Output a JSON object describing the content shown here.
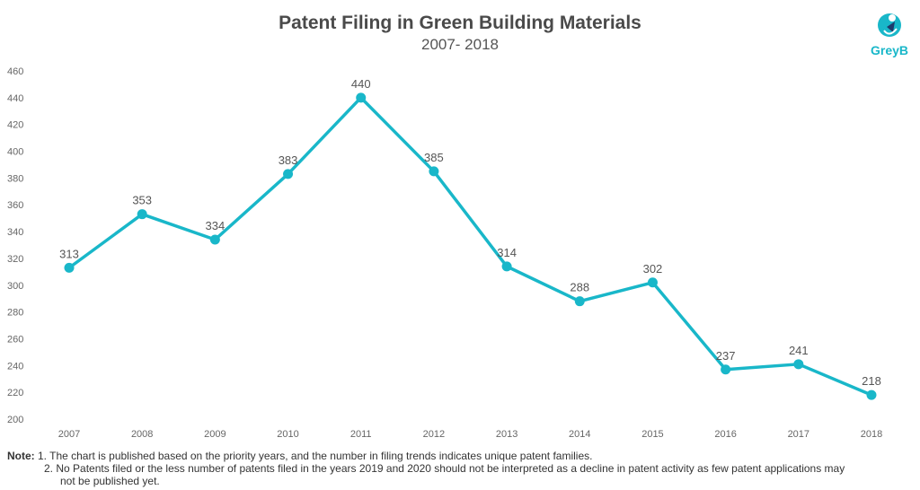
{
  "header": {
    "title": "Patent Filing in Green Building Materials",
    "subtitle": "2007- 2018",
    "logo_text": "GreyB"
  },
  "colors": {
    "line": "#19b7c9",
    "axis_text": "#666666",
    "label_text": "#555555"
  },
  "chart_data": {
    "type": "line",
    "title": "Patent Filing in Green Building Materials",
    "subtitle": "2007- 2018",
    "x": [
      "2007",
      "2008",
      "2009",
      "2010",
      "2011",
      "2012",
      "2013",
      "2014",
      "2015",
      "2016",
      "2017",
      "2018"
    ],
    "series": [
      {
        "values": [
          313,
          353,
          334,
          383,
          440,
          385,
          314,
          288,
          302,
          237,
          241,
          218
        ]
      }
    ],
    "data_labels": [
      "313",
      "353",
      "334",
      "383",
      "440",
      "385",
      "314",
      "288",
      "302",
      "237",
      "241",
      "218"
    ],
    "y_ticks": [
      "200",
      "220",
      "240",
      "260",
      "280",
      "300",
      "320",
      "340",
      "360",
      "380",
      "400",
      "420",
      "440",
      "460"
    ],
    "ylim": [
      200,
      460
    ],
    "grid": false,
    "legend": "none",
    "xlabel": "",
    "ylabel": ""
  },
  "note": {
    "label": "Note:",
    "line1": "1. The chart is published based on the priority years, and the number in filing trends indicates unique patent families.",
    "line2": "2. No Patents filed or the less number of patents filed in the years 2019 and 2020 should not be interpreted as a decline in patent activity as few patent applications may",
    "line3": "not be published yet."
  }
}
